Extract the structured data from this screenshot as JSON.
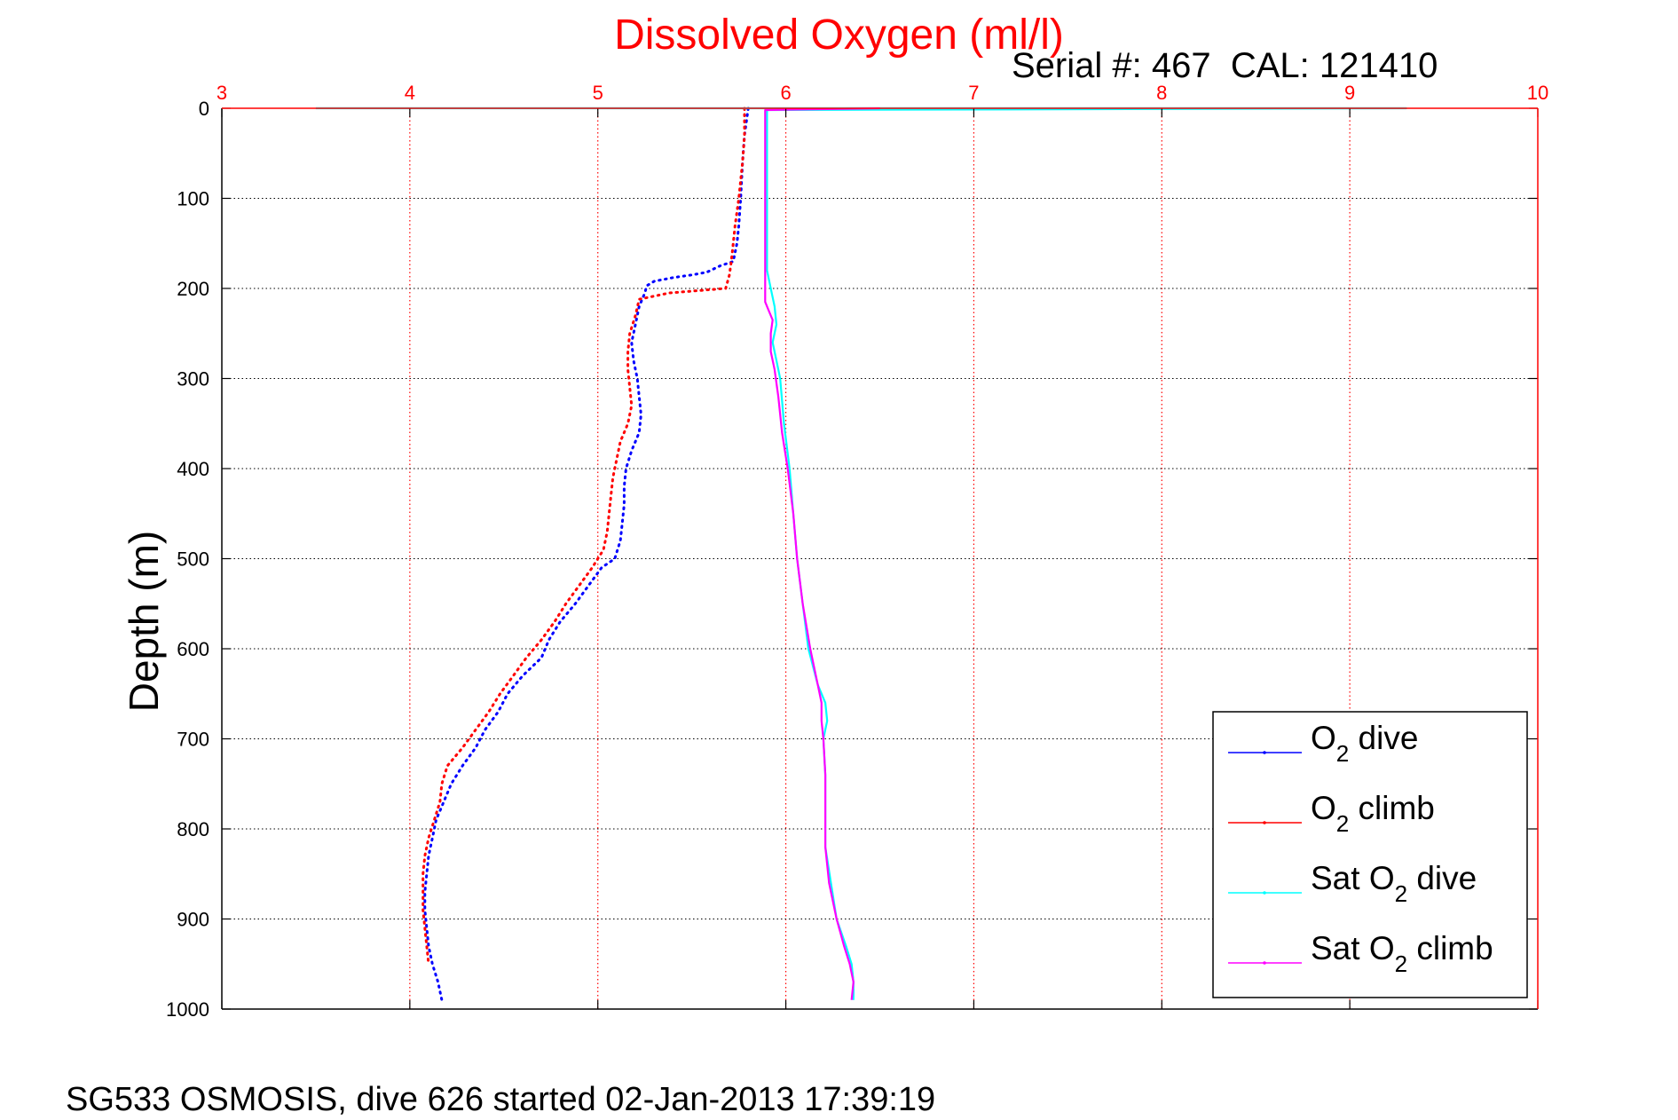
{
  "header": {
    "title": "Dissolved Oxygen (ml/l)",
    "serial": "Serial #: 467  CAL: 121410"
  },
  "footer": {
    "caption": "SG533 OSMOSIS, dive 626 started 02-Jan-2013 17:39:19"
  },
  "chart_data": {
    "type": "line",
    "title": "Dissolved Oxygen (ml/l)",
    "subtitle": "Serial #: 467  CAL: 121410",
    "xlabel": "",
    "ylabel": "Depth (m)",
    "xlim": [
      3,
      10
    ],
    "ylim": [
      0,
      1000
    ],
    "y_reversed": true,
    "x_axis_position": "top",
    "x_ticks": [
      "3",
      "4",
      "5",
      "6",
      "7",
      "8",
      "9",
      "10"
    ],
    "y_ticks": [
      "0",
      "100",
      "200",
      "300",
      "400",
      "500",
      "600",
      "700",
      "800",
      "900",
      "1000"
    ],
    "grid": true,
    "legend_position": "bottom-right",
    "colors": {
      "title": "#ff0000",
      "x_ticks": "#ff0000",
      "x_grid": "#ff0000",
      "y_grid": "#000000"
    },
    "series": [
      {
        "name": "O2 dive",
        "legend": {
          "base": "O",
          "sub": "2",
          "rest": " dive"
        },
        "color": "#0000ff",
        "style": "dotted",
        "points": [
          [
            5.8,
            0
          ],
          [
            5.78,
            30
          ],
          [
            5.77,
            60
          ],
          [
            5.76,
            100
          ],
          [
            5.75,
            130
          ],
          [
            5.74,
            150
          ],
          [
            5.72,
            170
          ],
          [
            5.65,
            175
          ],
          [
            5.58,
            182
          ],
          [
            5.5,
            185
          ],
          [
            5.4,
            188
          ],
          [
            5.3,
            192
          ],
          [
            5.26,
            197
          ],
          [
            5.25,
            205
          ],
          [
            5.22,
            220
          ],
          [
            5.2,
            240
          ],
          [
            5.18,
            260
          ],
          [
            5.19,
            280
          ],
          [
            5.21,
            300
          ],
          [
            5.22,
            320
          ],
          [
            5.23,
            340
          ],
          [
            5.22,
            360
          ],
          [
            5.18,
            380
          ],
          [
            5.15,
            400
          ],
          [
            5.14,
            420
          ],
          [
            5.14,
            440
          ],
          [
            5.13,
            460
          ],
          [
            5.12,
            480
          ],
          [
            5.09,
            500
          ],
          [
            5.02,
            510
          ],
          [
            4.95,
            530
          ],
          [
            4.88,
            550
          ],
          [
            4.8,
            570
          ],
          [
            4.74,
            590
          ],
          [
            4.7,
            610
          ],
          [
            4.6,
            630
          ],
          [
            4.52,
            650
          ],
          [
            4.47,
            670
          ],
          [
            4.4,
            690
          ],
          [
            4.35,
            710
          ],
          [
            4.28,
            730
          ],
          [
            4.22,
            750
          ],
          [
            4.18,
            770
          ],
          [
            4.14,
            790
          ],
          [
            4.12,
            810
          ],
          [
            4.1,
            830
          ],
          [
            4.09,
            850
          ],
          [
            4.08,
            870
          ],
          [
            4.08,
            890
          ],
          [
            4.09,
            910
          ],
          [
            4.1,
            930
          ],
          [
            4.12,
            950
          ],
          [
            4.15,
            970
          ],
          [
            4.17,
            990
          ]
        ]
      },
      {
        "name": "O2 climb",
        "legend": {
          "base": "O",
          "sub": "2",
          "rest": " climb"
        },
        "color": "#ff0000",
        "style": "dotted",
        "points": [
          [
            5.78,
            0
          ],
          [
            5.78,
            30
          ],
          [
            5.77,
            60
          ],
          [
            5.75,
            100
          ],
          [
            5.73,
            130
          ],
          [
            5.72,
            150
          ],
          [
            5.71,
            170
          ],
          [
            5.7,
            185
          ],
          [
            5.68,
            200
          ],
          [
            5.38,
            205
          ],
          [
            5.22,
            212
          ],
          [
            5.2,
            230
          ],
          [
            5.17,
            250
          ],
          [
            5.16,
            270
          ],
          [
            5.16,
            290
          ],
          [
            5.17,
            310
          ],
          [
            5.18,
            330
          ],
          [
            5.16,
            350
          ],
          [
            5.12,
            370
          ],
          [
            5.1,
            390
          ],
          [
            5.08,
            410
          ],
          [
            5.07,
            430
          ],
          [
            5.06,
            450
          ],
          [
            5.05,
            470
          ],
          [
            5.03,
            490
          ],
          [
            4.97,
            510
          ],
          [
            4.9,
            530
          ],
          [
            4.83,
            550
          ],
          [
            4.77,
            570
          ],
          [
            4.7,
            590
          ],
          [
            4.62,
            610
          ],
          [
            4.55,
            630
          ],
          [
            4.48,
            650
          ],
          [
            4.42,
            670
          ],
          [
            4.35,
            690
          ],
          [
            4.28,
            710
          ],
          [
            4.2,
            730
          ],
          [
            4.17,
            750
          ],
          [
            4.16,
            770
          ],
          [
            4.13,
            790
          ],
          [
            4.1,
            810
          ],
          [
            4.08,
            830
          ],
          [
            4.07,
            850
          ],
          [
            4.07,
            870
          ],
          [
            4.07,
            890
          ],
          [
            4.08,
            910
          ],
          [
            4.09,
            930
          ],
          [
            4.1,
            950
          ]
        ]
      },
      {
        "name": "Sat O2 dive",
        "legend": {
          "base": "Sat O",
          "sub": "2",
          "rest": " dive"
        },
        "color": "#00ffff",
        "style": "solid",
        "points": [
          [
            3.5,
            0
          ],
          [
            9.3,
            0
          ],
          [
            5.9,
            2
          ],
          [
            5.9,
            100
          ],
          [
            5.9,
            180
          ],
          [
            5.92,
            200
          ],
          [
            5.94,
            220
          ],
          [
            5.95,
            240
          ],
          [
            5.93,
            260
          ],
          [
            5.95,
            280
          ],
          [
            5.97,
            300
          ],
          [
            5.99,
            350
          ],
          [
            6.02,
            400
          ],
          [
            6.04,
            450
          ],
          [
            6.06,
            500
          ],
          [
            6.09,
            550
          ],
          [
            6.12,
            600
          ],
          [
            6.17,
            640
          ],
          [
            6.21,
            660
          ],
          [
            6.22,
            680
          ],
          [
            6.2,
            700
          ],
          [
            6.21,
            740
          ],
          [
            6.21,
            780
          ],
          [
            6.21,
            820
          ],
          [
            6.24,
            860
          ],
          [
            6.27,
            900
          ],
          [
            6.32,
            930
          ],
          [
            6.35,
            950
          ],
          [
            6.36,
            970
          ],
          [
            6.36,
            990
          ]
        ]
      },
      {
        "name": "Sat O2 climb",
        "legend": {
          "base": "Sat O",
          "sub": "2",
          "rest": " climb"
        },
        "color": "#ff00ff",
        "style": "solid",
        "points": [
          [
            6.5,
            0
          ],
          [
            5.89,
            2
          ],
          [
            5.89,
            100
          ],
          [
            5.89,
            200
          ],
          [
            5.89,
            215
          ],
          [
            5.91,
            225
          ],
          [
            5.93,
            235
          ],
          [
            5.92,
            250
          ],
          [
            5.92,
            270
          ],
          [
            5.94,
            290
          ],
          [
            5.96,
            320
          ],
          [
            5.98,
            360
          ],
          [
            6.01,
            400
          ],
          [
            6.04,
            450
          ],
          [
            6.06,
            500
          ],
          [
            6.09,
            550
          ],
          [
            6.13,
            600
          ],
          [
            6.17,
            640
          ],
          [
            6.19,
            660
          ],
          [
            6.19,
            680
          ],
          [
            6.2,
            700
          ],
          [
            6.21,
            740
          ],
          [
            6.21,
            780
          ],
          [
            6.21,
            820
          ],
          [
            6.23,
            860
          ],
          [
            6.27,
            900
          ],
          [
            6.31,
            930
          ],
          [
            6.34,
            950
          ],
          [
            6.36,
            970
          ],
          [
            6.35,
            990
          ]
        ]
      }
    ]
  }
}
